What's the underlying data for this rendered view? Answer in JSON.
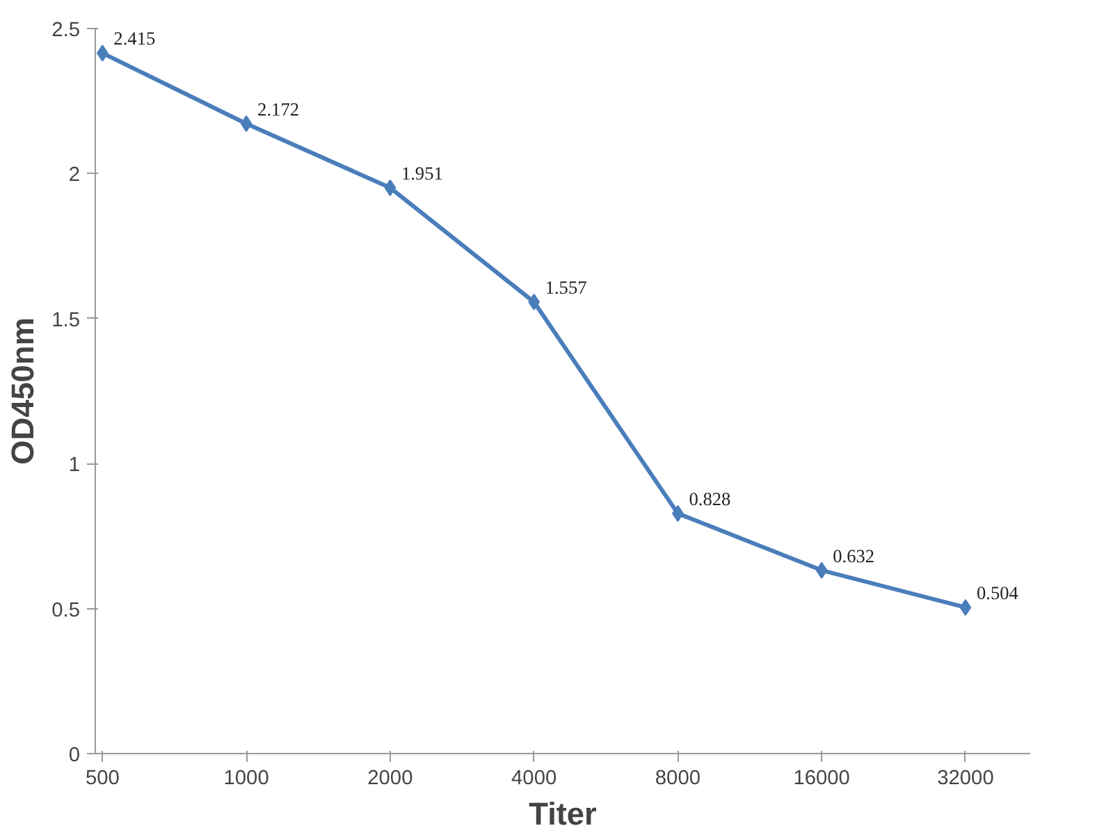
{
  "chart_data": {
    "type": "line",
    "xlabel": "Titer",
    "ylabel": "OD450nm",
    "categories": [
      "500",
      "1000",
      "2000",
      "4000",
      "8000",
      "16000",
      "32000"
    ],
    "series": [
      {
        "color": "#4a7ebb",
        "values": [
          2.415,
          2.172,
          1.951,
          1.557,
          0.828,
          0.632,
          0.504
        ]
      }
    ],
    "ylim": [
      0,
      2.5
    ],
    "yticks": [
      0,
      0.5,
      1,
      1.5,
      2,
      2.5
    ],
    "grid": false,
    "marker": "diamond",
    "data_labels": true
  }
}
